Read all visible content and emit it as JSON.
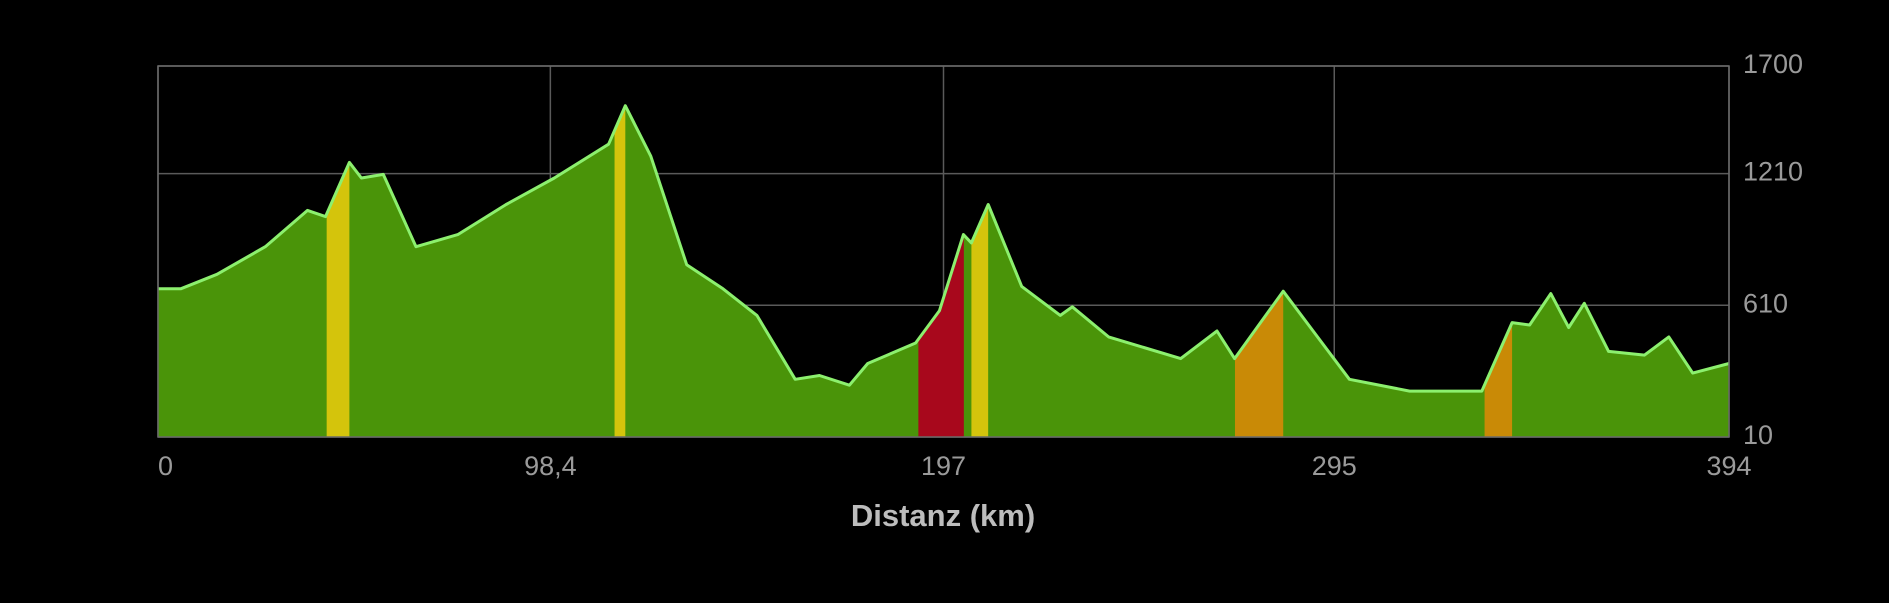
{
  "chart_data": {
    "type": "area",
    "xlabel": "Distanz (km)",
    "x": [
      0,
      5.7,
      14.8,
      26.9,
      37.5,
      42,
      48,
      51,
      56.5,
      64.7,
      75.2,
      87.3,
      99.4,
      113,
      117.2,
      123.6,
      132.6,
      141.7,
      150.2,
      159.8,
      165.9,
      173.4,
      178,
      190,
      196,
      202,
      204,
      208.2,
      216.6,
      226.3,
      229.3,
      238.4,
      256.5,
      265.6,
      270,
      282.2,
      289.7,
      298.8,
      313.9,
      332,
      339.6,
      344,
      349.3,
      353.8,
      357.7,
      363.8,
      372.8,
      378.9,
      384.9,
      394
    ],
    "series": [
      {
        "color": "#4a9409",
        "line_color": "#8cf06e",
        "values": [
          685,
          685,
          751,
          877,
          1042,
          1014,
          1261,
          1190,
          1206,
          877,
          932,
          1069,
          1190,
          1344,
          1519,
          1289,
          795,
          685,
          564,
          273,
          290,
          246,
          345,
          438,
          586,
          932,
          894,
          1069,
          696,
          564,
          603,
          466,
          367,
          493,
          367,
          674,
          493,
          273,
          219,
          219,
          531,
          520,
          663,
          509,
          619,
          400,
          383,
          466,
          301,
          345
        ]
      }
    ],
    "highlights": [
      {
        "start": 42.3,
        "end": 48.0,
        "color": "#d4c40c"
      },
      {
        "start": 114.5,
        "end": 117.2,
        "color": "#d4c40c"
      },
      {
        "start": 190.7,
        "end": 202.1,
        "color": "#a8081c"
      },
      {
        "start": 204,
        "end": 208.2,
        "color": "#d4c40c"
      },
      {
        "start": 270.1,
        "end": 282.2,
        "color": "#c98a06"
      },
      {
        "start": 332.7,
        "end": 339.6,
        "color": "#c98a06"
      }
    ],
    "xlim": [
      0,
      394
    ],
    "xticks": [
      0,
      {
        "value": 98.4,
        "label": "98,4"
      },
      197,
      295,
      394
    ],
    "ylim": [
      10,
      1700
    ],
    "yticks": [
      10,
      610,
      1210,
      1700
    ],
    "grid": true
  }
}
